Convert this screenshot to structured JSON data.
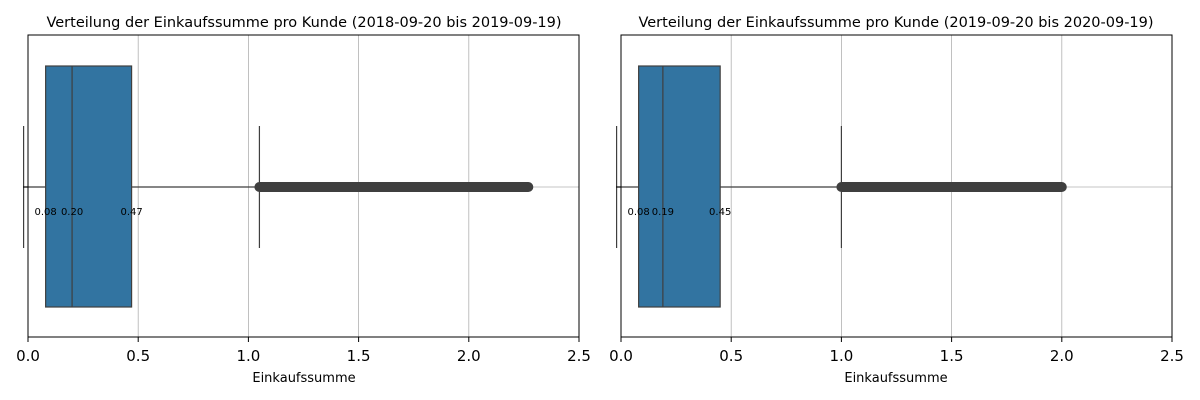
{
  "chart_data": [
    {
      "type": "boxplot",
      "orientation": "horizontal",
      "title": "Verteilung der Einkaufssumme pro Kunde (2018-09-20 bis 2019-09-19)",
      "xlabel": "Einkaufssumme",
      "ylabel": "",
      "xlim": [
        0,
        2.5
      ],
      "xticks": [
        "0.0",
        "0.5",
        "1.0",
        "1.5",
        "2.0",
        "2.5"
      ],
      "grid": "x",
      "box": {
        "whisker_low": -0.02,
        "q1": 0.08,
        "median": 0.2,
        "q3": 0.47,
        "whisker_high": 1.05
      },
      "outliers": {
        "from": 1.05,
        "to": 2.27
      },
      "quartile_labels": [
        "0.08",
        "0.20",
        "0.47"
      ],
      "color": "#3274a1"
    },
    {
      "type": "boxplot",
      "orientation": "horizontal",
      "title": "Verteilung der Einkaufssumme pro Kunde (2019-09-20 bis 2020-09-19)",
      "xlabel": "Einkaufssumme",
      "ylabel": "",
      "xlim": [
        0,
        2.5
      ],
      "xticks": [
        "0.0",
        "0.5",
        "1.0",
        "1.5",
        "2.0",
        "2.5"
      ],
      "grid": "x",
      "box": {
        "whisker_low": -0.02,
        "q1": 0.08,
        "median": 0.19,
        "q3": 0.45,
        "whisker_high": 1.0
      },
      "outliers": {
        "from": 1.0,
        "to": 2.0
      },
      "quartile_labels": [
        "0.08",
        "0.19",
        "0.45"
      ],
      "color": "#3274a1"
    }
  ]
}
